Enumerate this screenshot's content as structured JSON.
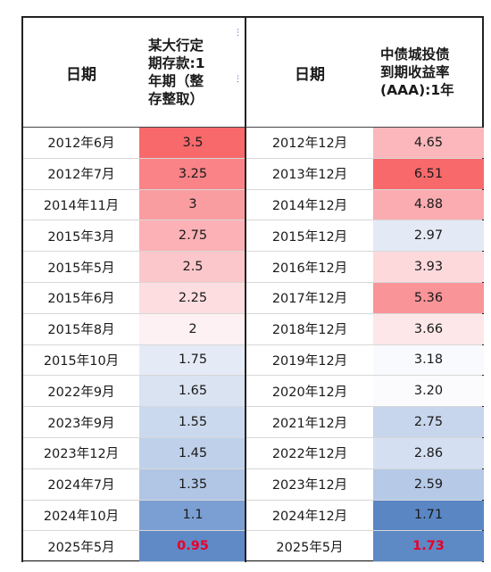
{
  "left_table": {
    "headers": {
      "date": "日期",
      "value": "某大行定\n期存款:1\n年期（整\n存整取）"
    },
    "rows": [
      {
        "date": "2012年6月",
        "value": "3.5",
        "color": "#f8696b"
      },
      {
        "date": "2012年7月",
        "value": "3.25",
        "color": "#f98387"
      },
      {
        "date": "2014年11月",
        "value": "3",
        "color": "#fa9da1"
      },
      {
        "date": "2015年3月",
        "value": "2.75",
        "color": "#fbb1b5"
      },
      {
        "date": "2015年5月",
        "value": "2.5",
        "color": "#fcc7ca"
      },
      {
        "date": "2015年6月",
        "value": "2.25",
        "color": "#fddde0"
      },
      {
        "date": "2015年8月",
        "value": "2",
        "color": "#fdf1f3"
      },
      {
        "date": "2015年10月",
        "value": "1.75",
        "color": "#e5ebf6"
      },
      {
        "date": "2022年9月",
        "value": "1.65",
        "color": "#d9e3f2"
      },
      {
        "date": "2023年9月",
        "value": "1.55",
        "color": "#cbd9ee"
      },
      {
        "date": "2023年12月",
        "value": "1.45",
        "color": "#bfd0ea"
      },
      {
        "date": "2024年7月",
        "value": "1.35",
        "color": "#b1c6e5"
      },
      {
        "date": "2024年10月",
        "value": "1.1",
        "color": "#7b9fd2"
      },
      {
        "date": "2025年5月",
        "value": "0.95",
        "color": "#5f8ac6",
        "highlight": true
      }
    ]
  },
  "right_table": {
    "headers": {
      "date": "日期",
      "value": "中债城投债\n到期收益率\n(AAA):1年"
    },
    "rows": [
      {
        "date": "2012年12月",
        "value": "4.65",
        "color": "#fbb7bb"
      },
      {
        "date": "2013年12月",
        "value": "6.51",
        "color": "#f8696b"
      },
      {
        "date": "2014年12月",
        "value": "4.88",
        "color": "#fbacb0"
      },
      {
        "date": "2015年12月",
        "value": "2.97",
        "color": "#e3eaf6"
      },
      {
        "date": "2016年12月",
        "value": "3.93",
        "color": "#fdd9dc"
      },
      {
        "date": "2017年12月",
        "value": "5.36",
        "color": "#f99499"
      },
      {
        "date": "2018年12月",
        "value": "3.66",
        "color": "#fde7e9"
      },
      {
        "date": "2019年12月",
        "value": "3.18",
        "color": "#f9fafd"
      },
      {
        "date": "2020年12月",
        "value": "3.20",
        "color": "#fbfbfe"
      },
      {
        "date": "2021年12月",
        "value": "2.75",
        "color": "#c7d6ec"
      },
      {
        "date": "2022年12月",
        "value": "2.86",
        "color": "#d4e0f1"
      },
      {
        "date": "2023年12月",
        "value": "2.59",
        "color": "#b6cae7"
      },
      {
        "date": "2024年12月",
        "value": "1.71",
        "color": "#5a87c4"
      },
      {
        "date": "2025年5月",
        "value": "1.73",
        "color": "#5d89c5",
        "highlight": true
      }
    ]
  }
}
